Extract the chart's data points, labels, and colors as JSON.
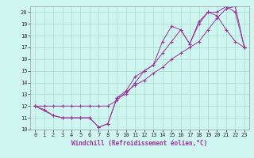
{
  "background_color": "#cef5f0",
  "grid_color": "#aaddcc",
  "line_color": "#993399",
  "marker": "+",
  "xlim": [
    -0.5,
    23.5
  ],
  "ylim": [
    10,
    20.5
  ],
  "xlabel": "Windchill (Refroidissement éolien,°C)",
  "xticks": [
    0,
    1,
    2,
    3,
    4,
    5,
    6,
    7,
    8,
    9,
    10,
    11,
    12,
    13,
    14,
    15,
    16,
    17,
    18,
    19,
    20,
    21,
    22,
    23
  ],
  "yticks": [
    10,
    11,
    12,
    13,
    14,
    15,
    16,
    17,
    18,
    19,
    20
  ],
  "series": [
    {
      "x": [
        0,
        1,
        2,
        3,
        4,
        5,
        6,
        7,
        8,
        9,
        10,
        11,
        12,
        13,
        14,
        15,
        16,
        17,
        18,
        19,
        20,
        21,
        22,
        23
      ],
      "y": [
        12,
        11.7,
        11.2,
        11.0,
        11.0,
        11.0,
        11.0,
        10.2,
        10.5,
        12.7,
        13.0,
        14.0,
        15.0,
        15.5,
        16.5,
        17.5,
        18.5,
        17.3,
        19.0,
        20.0,
        19.7,
        18.5,
        17.5,
        17.0
      ]
    },
    {
      "x": [
        0,
        1,
        2,
        3,
        4,
        5,
        6,
        7,
        8,
        9,
        10,
        11,
        12,
        13,
        14,
        15,
        16,
        17,
        18,
        19,
        20,
        21,
        22,
        23
      ],
      "y": [
        12,
        12,
        12,
        12,
        12,
        12,
        12,
        12,
        12,
        12.5,
        13.2,
        13.8,
        14.2,
        14.8,
        15.3,
        16.0,
        16.5,
        17.0,
        17.5,
        18.5,
        19.5,
        20.3,
        20.5,
        17.0
      ]
    },
    {
      "x": [
        0,
        2,
        3,
        4,
        5,
        6,
        7,
        8,
        9,
        10,
        11,
        12,
        13,
        14,
        15,
        16,
        17,
        18,
        19,
        20,
        21,
        22,
        23
      ],
      "y": [
        12,
        11.2,
        11.0,
        11.0,
        11.0,
        11.0,
        10.2,
        10.5,
        12.7,
        13.3,
        14.5,
        15.0,
        15.5,
        17.5,
        18.8,
        18.5,
        17.3,
        19.2,
        20.0,
        20.0,
        20.5,
        20.0,
        17.0
      ]
    }
  ],
  "axis_fontsize": 5.5,
  "tick_fontsize": 5
}
